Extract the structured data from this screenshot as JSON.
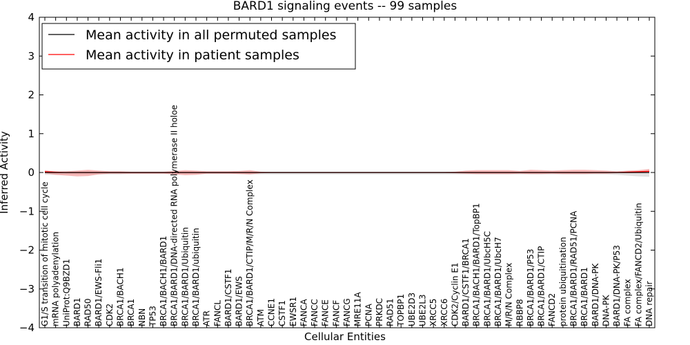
{
  "chart_data": {
    "type": "line",
    "title": "BARD1 signaling events -- 99 samples",
    "xlabel": "Cellular Entities",
    "ylabel": "Inferred Activity",
    "ylim": [
      -4,
      4
    ],
    "yticks": [
      -4,
      -3,
      -2,
      -1,
      0,
      1,
      2,
      3,
      4
    ],
    "ytick_labels": [
      "−4",
      "−3",
      "−2",
      "−1",
      "0",
      "1",
      "2",
      "3",
      "4"
    ],
    "grid": false,
    "legend_position": "top-left",
    "colors": {
      "permuted": "#000000",
      "patient": "#ff0000",
      "patient_band": "#f08080",
      "permuted_band": "#c8c8c8"
    },
    "categories": [
      "G1/S transition of mitotic cell cycle",
      "mRNA polyadenylation",
      "UniProt:Q9BZD1",
      "BARD1",
      "RAD50",
      "BARD1/EWS-Fli1",
      "CDK2",
      "BRCA1/BACH1",
      "BRCA1",
      "NBN",
      "TP53",
      "BRCA1/BACH1/BARD1",
      "BRCA1/BARD1/DNA-directed RNA polymerase II holoe",
      "BRCA1/BARD1/Ubiquitin",
      "BRCA1/BARD1/ubiquitin",
      "ATR",
      "FANCL",
      "BARD1/CSTF1",
      "BARD1/EWS",
      "BRCA1/BARD1/CTIP/M/R/N Complex",
      "ATM",
      "CCNE1",
      "CSTF1",
      "EWSR1",
      "FANCA",
      "FANCC",
      "FANCE",
      "FANCF",
      "FANCG",
      "MRE11A",
      "PCNA",
      "PRKDC",
      "RAD51",
      "TOPBP1",
      "UBE2D3",
      "UBE2L3",
      "XRCC5",
      "XRCC6",
      "CDK2/Cyclin E1",
      "BARD1/CSTF1/BRCA1",
      "BRCA1/BACH1/BARD1/TopBP1",
      "BRCA1/BARD1/UbcH5C",
      "BRCA1/BARD1/UbcH7",
      "M/R/N Complex",
      "RBBP8",
      "BRCA1/BARD1/P53",
      "BRCA1/BARD1/CTIP",
      "FANCD2",
      "protein ubiquitination",
      "BRCA1/BARD1/RAD51/PCNA",
      "BRCA1/BARD1",
      "BARD1/DNA-PK",
      "DNA-PK",
      "BARD1/DNA-PK/P53",
      "FA complex",
      "FA complex/FANCD2/Ubiquitin",
      "DNA repair"
    ],
    "series": [
      {
        "name": "Mean activity in all permuted samples",
        "color": "#000000",
        "values": [
          0,
          0,
          0,
          0,
          0,
          0,
          0,
          0,
          0,
          0,
          0,
          0,
          0,
          0,
          0,
          0,
          0,
          0,
          0,
          0,
          0,
          0,
          0,
          0,
          0,
          0,
          0,
          0,
          0,
          0,
          0,
          0,
          0,
          0,
          0,
          0,
          0,
          0,
          0,
          0,
          0,
          0,
          0,
          0,
          0,
          0,
          0,
          0,
          0,
          0,
          0,
          0,
          0,
          0,
          0,
          0,
          0
        ],
        "band_upper": [
          0.02,
          0.02,
          0.02,
          0.02,
          0.02,
          0.02,
          0.02,
          0.02,
          0.02,
          0.02,
          0.02,
          0.02,
          0.02,
          0.02,
          0.02,
          0.02,
          0.02,
          0.02,
          0.02,
          0.02,
          0.02,
          0.02,
          0.02,
          0.02,
          0.02,
          0.02,
          0.02,
          0.02,
          0.02,
          0.02,
          0.02,
          0.02,
          0.02,
          0.02,
          0.02,
          0.02,
          0.02,
          0.02,
          0.02,
          0.02,
          0.02,
          0.02,
          0.02,
          0.02,
          0.02,
          0.02,
          0.02,
          0.02,
          0.02,
          0.02,
          0.02,
          0.02,
          0.02,
          0.02,
          0.02,
          0.03,
          0.03
        ],
        "band_lower": [
          -0.06,
          -0.06,
          -0.05,
          -0.05,
          -0.05,
          -0.05,
          -0.05,
          -0.05,
          -0.04,
          -0.04,
          -0.04,
          -0.04,
          -0.04,
          -0.04,
          -0.04,
          -0.04,
          -0.04,
          -0.04,
          -0.04,
          -0.05,
          -0.05,
          -0.05,
          -0.05,
          -0.05,
          -0.05,
          -0.05,
          -0.05,
          -0.05,
          -0.05,
          -0.05,
          -0.05,
          -0.05,
          -0.05,
          -0.05,
          -0.05,
          -0.05,
          -0.05,
          -0.05,
          -0.05,
          -0.05,
          -0.05,
          -0.05,
          -0.05,
          -0.05,
          -0.05,
          -0.05,
          -0.05,
          -0.05,
          -0.05,
          -0.05,
          -0.05,
          -0.05,
          -0.05,
          -0.06,
          -0.08,
          -0.1,
          -0.11
        ]
      },
      {
        "name": "Mean activity in patient samples",
        "color": "#ff0000",
        "values": [
          0.02,
          0.01,
          0.0,
          0.0,
          0.0,
          0.0,
          0.0,
          0.0,
          0.0,
          0.0,
          0.0,
          0.0,
          0.0,
          0.0,
          0.0,
          0.0,
          0.0,
          0.0,
          0.0,
          0.0,
          0.0,
          0.0,
          0.0,
          0.0,
          0.0,
          0.0,
          0.0,
          0.0,
          0.0,
          0.0,
          0.0,
          0.0,
          0.0,
          0.0,
          0.0,
          0.0,
          0.0,
          0.0,
          0.0,
          0.0,
          0.0,
          0.0,
          0.0,
          0.0,
          0.0,
          0.0,
          0.0,
          0.0,
          0.0,
          0.0,
          0.0,
          0.0,
          0.0,
          0.0,
          0.01,
          0.02,
          0.03
        ],
        "band_upper": [
          0.06,
          0.02,
          0.03,
          0.05,
          0.07,
          0.05,
          0.03,
          0.03,
          0.02,
          0.02,
          0.02,
          0.02,
          0.04,
          0.06,
          0.05,
          0.03,
          0.03,
          0.03,
          0.04,
          0.06,
          0.02,
          0.01,
          0.01,
          0.01,
          0.01,
          0.01,
          0.01,
          0.01,
          0.01,
          0.01,
          0.01,
          0.01,
          0.01,
          0.01,
          0.01,
          0.01,
          0.01,
          0.01,
          0.02,
          0.05,
          0.06,
          0.06,
          0.06,
          0.06,
          0.04,
          0.07,
          0.06,
          0.05,
          0.06,
          0.07,
          0.07,
          0.06,
          0.05,
          0.03,
          0.05,
          0.06,
          0.09
        ],
        "band_lower": [
          -0.02,
          -0.06,
          -0.08,
          -0.1,
          -0.09,
          -0.05,
          -0.03,
          -0.03,
          -0.03,
          -0.03,
          -0.03,
          -0.03,
          -0.05,
          -0.07,
          -0.06,
          -0.03,
          -0.03,
          -0.03,
          -0.04,
          -0.05,
          -0.02,
          -0.01,
          -0.01,
          -0.01,
          -0.01,
          -0.01,
          -0.01,
          -0.01,
          -0.01,
          -0.01,
          -0.01,
          -0.01,
          -0.01,
          -0.01,
          -0.01,
          -0.01,
          -0.01,
          -0.01,
          -0.02,
          -0.03,
          -0.04,
          -0.04,
          -0.04,
          -0.04,
          -0.03,
          -0.04,
          -0.04,
          -0.03,
          -0.04,
          -0.04,
          -0.04,
          -0.03,
          -0.03,
          -0.02,
          -0.02,
          -0.01,
          -0.01
        ]
      }
    ]
  }
}
